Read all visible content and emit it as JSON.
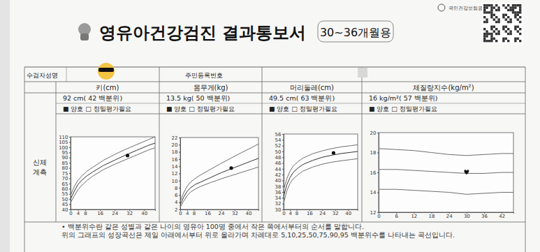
{
  "header": {
    "title": "영유아건강검진 결과통보서",
    "badge": "30~36개월용",
    "org": "국민건강보험공단"
  },
  "table": {
    "name_label": "수검자성명",
    "id_label": "주민등록번호",
    "section_label": [
      "신체",
      "계측"
    ]
  },
  "footer": [
    "• 백분위수란 같은 성별과 같은 나이의 영유아 100명 중에서 작은 쪽에서부터의 순서를 말합니다.",
    "위의 그래프의 성장곡선은 제일 아래에서부터 위로 올라가며 차례대로 5,10,25,50,75,90,95 백분위수를 나타내는 곡선입니다."
  ],
  "chart_data": [
    {
      "type": "line",
      "title": "키(cm)",
      "subtitle": "92 cm( 42 백분위)",
      "annotations": [
        "■ 양호 □ 정밀평가필요"
      ],
      "xlim": [
        0,
        46
      ],
      "xticks": [
        0,
        4,
        8,
        16,
        24,
        32,
        40
      ],
      "ylim": [
        40,
        110
      ],
      "yticks": [
        40,
        45,
        50,
        55,
        60,
        65,
        70,
        75,
        80,
        85,
        90,
        95,
        100,
        105,
        110
      ],
      "grid": false,
      "series": [
        {
          "color": "#6e6e6e",
          "line_style": "solid",
          "x": [
            0,
            2,
            4,
            6,
            9,
            12,
            18,
            24,
            30,
            36,
            42,
            46
          ],
          "values": [
            46.5,
            53,
            59,
            63,
            68,
            72,
            78.5,
            83.5,
            88,
            92.5,
            97,
            99.5
          ]
        },
        {
          "color": "#333333",
          "line_style": "solid",
          "x": [
            0,
            2,
            4,
            6,
            9,
            12,
            18,
            24,
            30,
            36,
            42,
            46
          ],
          "values": [
            50,
            57.5,
            64,
            68,
            72.5,
            76,
            82.5,
            87.5,
            92.5,
            97,
            101.5,
            104
          ]
        },
        {
          "color": "#6e6e6e",
          "line_style": "solid",
          "x": [
            0,
            2,
            4,
            6,
            9,
            12,
            18,
            24,
            30,
            36,
            42,
            46
          ],
          "values": [
            53.5,
            62,
            68,
            72,
            77,
            80.5,
            87.5,
            93,
            98,
            102.5,
            107,
            110
          ]
        },
        {
          "type": "scatter",
          "marker": "circle",
          "color": "#111111",
          "x": [
            31
          ],
          "values": [
            92
          ]
        }
      ]
    },
    {
      "type": "line",
      "title": "몸무게(kg)",
      "subtitle": "13.5 kg( 50 백분위)",
      "annotations": [
        "■ 양호 □ 정밀평가필요"
      ],
      "xlim": [
        0,
        46
      ],
      "xticks": [
        0,
        4,
        8,
        16,
        24,
        32,
        40
      ],
      "ylim": [
        2,
        22
      ],
      "yticks": [
        2,
        4,
        6,
        8,
        10,
        12,
        14,
        16,
        18,
        20,
        22
      ],
      "grid": false,
      "series": [
        {
          "color": "#6e6e6e",
          "line_style": "solid",
          "x": [
            0,
            2,
            4,
            6,
            9,
            12,
            18,
            24,
            30,
            36,
            42,
            46
          ],
          "values": [
            2.6,
            4.3,
            5.8,
            6.8,
            7.7,
            8.4,
            9.5,
            10.5,
            11.4,
            12.3,
            13.2,
            13.8
          ]
        },
        {
          "color": "#333333",
          "line_style": "solid",
          "x": [
            0,
            2,
            4,
            6,
            9,
            12,
            18,
            24,
            30,
            36,
            42,
            46
          ],
          "values": [
            3.3,
            5.4,
            7,
            8,
            9,
            9.6,
            10.9,
            12.2,
            13.3,
            14.4,
            15.5,
            16.2
          ]
        },
        {
          "color": "#6e6e6e",
          "line_style": "solid",
          "x": [
            0,
            2,
            4,
            6,
            9,
            12,
            18,
            24,
            30,
            36,
            42,
            46
          ],
          "values": [
            4.2,
            6.6,
            8.4,
            9.6,
            10.7,
            11.6,
            13.2,
            14.8,
            16.3,
            17.8,
            19.2,
            20.2
          ]
        },
        {
          "type": "scatter",
          "marker": "circle",
          "color": "#111111",
          "x": [
            30
          ],
          "values": [
            13.5
          ]
        }
      ]
    },
    {
      "type": "line",
      "title": "머리둘레(cm)",
      "subtitle": "49.5 cm( 63 백분위)",
      "annotations": [
        "■ 양호 □ 정밀평가필요"
      ],
      "xlim": [
        0,
        46
      ],
      "xticks": [
        0,
        4,
        8,
        16,
        24,
        32,
        40
      ],
      "ylim": [
        30,
        56
      ],
      "yticks": [
        30,
        32,
        34,
        36,
        38,
        40,
        42,
        44,
        46,
        48,
        50,
        52,
        54,
        56
      ],
      "grid": false,
      "series": [
        {
          "color": "#6e6e6e",
          "line_style": "solid",
          "x": [
            0,
            2,
            4,
            6,
            9,
            12,
            18,
            24,
            30,
            36,
            42,
            46
          ],
          "values": [
            32.2,
            36.4,
            39,
            40.6,
            42,
            43.2,
            44.6,
            45.6,
            46.3,
            46.8,
            47.2,
            47.5
          ]
        },
        {
          "color": "#333333",
          "line_style": "solid",
          "x": [
            0,
            2,
            4,
            6,
            9,
            12,
            18,
            24,
            30,
            36,
            42,
            46
          ],
          "values": [
            34.5,
            38.5,
            41,
            42.8,
            44.3,
            45.5,
            46.9,
            48,
            48.7,
            49.3,
            49.7,
            50
          ]
        },
        {
          "color": "#6e6e6e",
          "line_style": "solid",
          "x": [
            0,
            2,
            4,
            6,
            9,
            12,
            18,
            24,
            30,
            36,
            42,
            46
          ],
          "values": [
            36.8,
            40.6,
            43.2,
            45,
            46.5,
            47.7,
            49.2,
            50.2,
            51,
            51.6,
            52,
            52.3
          ]
        },
        {
          "type": "scatter",
          "marker": "circle",
          "color": "#111111",
          "x": [
            31
          ],
          "values": [
            49.5
          ]
        }
      ]
    },
    {
      "type": "line",
      "title": "체질량지수(kg/m²)",
      "subtitle": "16 kg/m²( 57 백분위)",
      "annotations": [
        "■ 양호 □ 정밀평가필요"
      ],
      "xlim": [
        0,
        46
      ],
      "xticks": [
        0,
        6,
        12,
        18,
        24,
        30,
        36,
        42
      ],
      "ylim": [
        12,
        20
      ],
      "yticks": [
        12,
        14,
        16,
        18,
        20
      ],
      "grid": false,
      "series": [
        {
          "color": "#6e6e6e",
          "line_style": "solid",
          "x": [
            0,
            6,
            12,
            18,
            24,
            30,
            36,
            42,
            46
          ],
          "values": [
            14.3,
            14.3,
            14.2,
            14.1,
            14.0,
            13.8,
            13.9,
            14.0,
            14.0
          ]
        },
        {
          "color": "#6e6e6e",
          "line_style": "solid",
          "x": [
            0,
            6,
            12,
            18,
            24,
            30,
            36,
            42,
            46
          ],
          "values": [
            16.3,
            16.3,
            16.2,
            16.1,
            16.0,
            15.9,
            15.9,
            16.0,
            16.0
          ]
        },
        {
          "color": "#6e6e6e",
          "line_style": "solid",
          "x": [
            0,
            6,
            12,
            18,
            24,
            30,
            36,
            42,
            46
          ],
          "values": [
            18.4,
            18.3,
            18.2,
            18.0,
            17.8,
            17.7,
            17.8,
            17.9,
            17.9
          ]
        },
        {
          "type": "scatter",
          "marker": "heart",
          "color": "#111111",
          "x": [
            30
          ],
          "values": [
            16
          ]
        }
      ]
    }
  ]
}
